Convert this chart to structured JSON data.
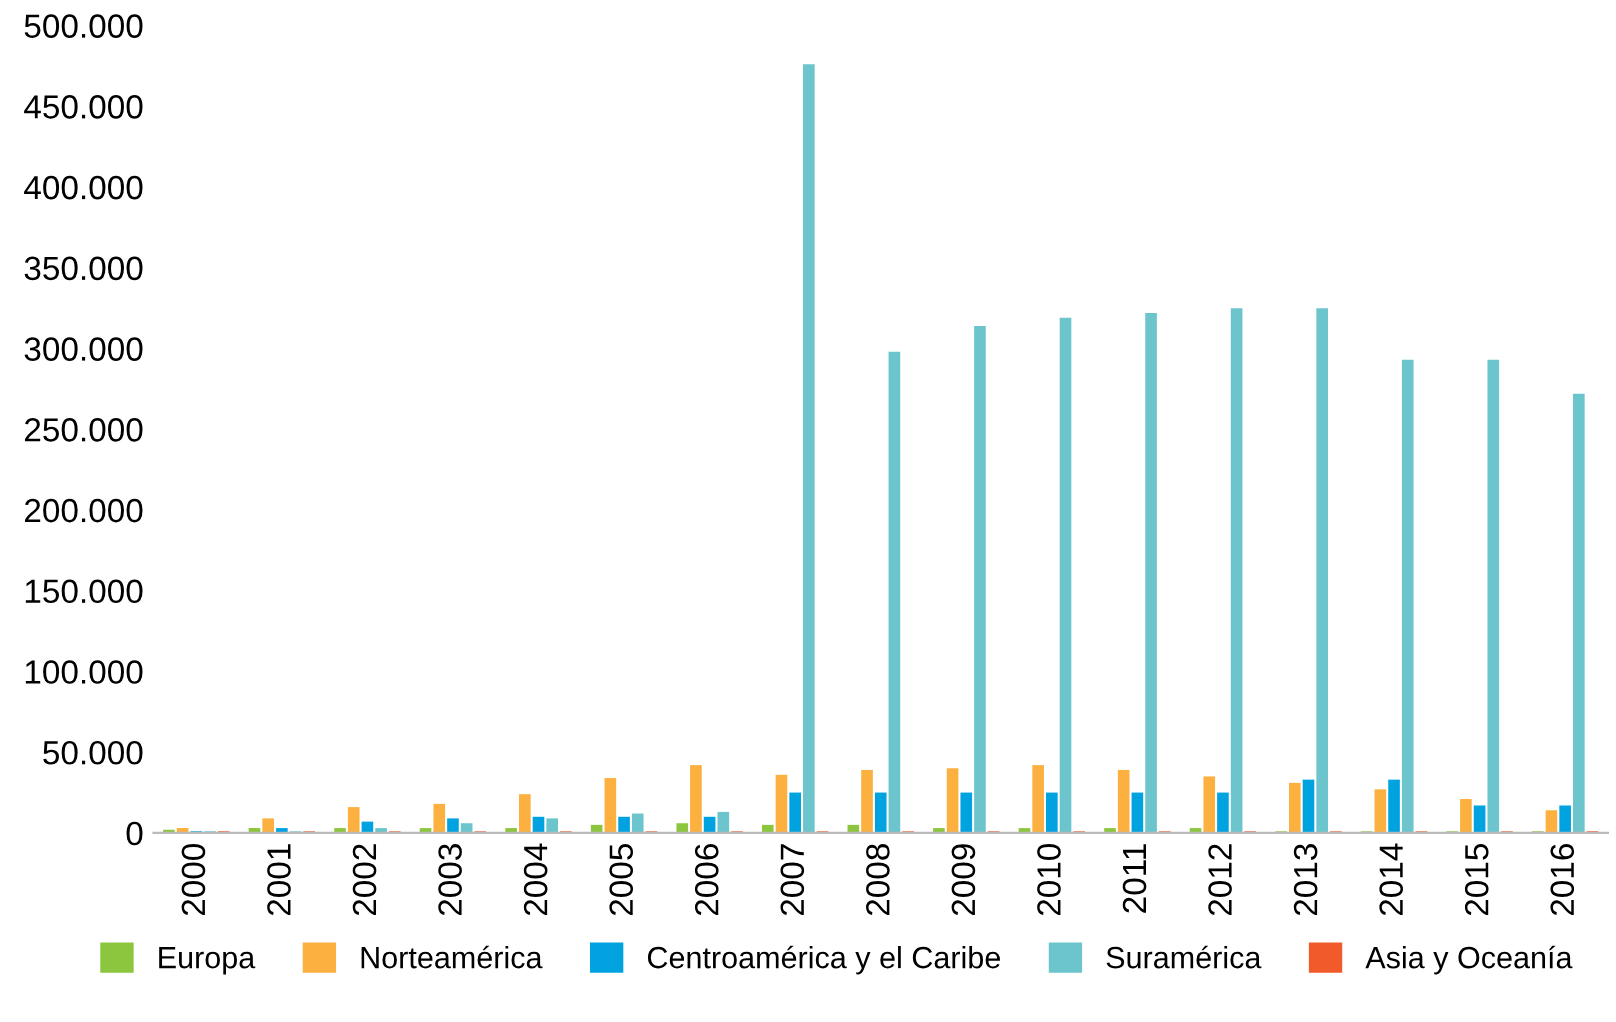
{
  "chart_data": {
    "type": "bar",
    "categories": [
      "2000",
      "2001",
      "2002",
      "2003",
      "2004",
      "2005",
      "2006",
      "2007",
      "2008",
      "2009",
      "2010",
      "2011",
      "2012",
      "2013",
      "2014",
      "2015",
      "2016"
    ],
    "series": [
      {
        "name": "Europa",
        "color": "#8cc63f",
        "values": [
          2000,
          3000,
          3000,
          3000,
          3000,
          5000,
          6000,
          5000,
          5000,
          3000,
          3000,
          3000,
          3000,
          1000,
          1000,
          1000,
          1000
        ]
      },
      {
        "name": "Norteamérica",
        "color": "#fbb040",
        "values": [
          3000,
          9000,
          16000,
          18000,
          24000,
          34000,
          42000,
          36000,
          39000,
          40000,
          42000,
          39000,
          35000,
          31000,
          27000,
          21000,
          14000
        ]
      },
      {
        "name": "Centroamérica y el Caribe",
        "color": "#00a3e0",
        "values": [
          1000,
          3000,
          7000,
          9000,
          10000,
          10000,
          10000,
          25000,
          25000,
          25000,
          25000,
          25000,
          25000,
          33000,
          33000,
          17000,
          17000
        ]
      },
      {
        "name": "Suramérica",
        "color": "#6cc5cc",
        "values": [
          1000,
          1000,
          3000,
          6000,
          9000,
          12000,
          13000,
          476000,
          298000,
          314000,
          319000,
          322000,
          325000,
          325000,
          293000,
          293000,
          272000
        ]
      },
      {
        "name": "Asia y Oceanía",
        "color": "#f15a29",
        "values": [
          1000,
          1000,
          1000,
          1000,
          1000,
          1000,
          1000,
          1000,
          1000,
          1000,
          1000,
          1000,
          1000,
          1000,
          1000,
          1000,
          1000
        ]
      }
    ],
    "ylim": [
      0,
      500000
    ],
    "yticks": [
      {
        "value": 0,
        "label": "0"
      },
      {
        "value": 50000,
        "label": "50.000"
      },
      {
        "value": 100000,
        "label": "100.000"
      },
      {
        "value": 150000,
        "label": "150.000"
      },
      {
        "value": 200000,
        "label": "200.000"
      },
      {
        "value": 250000,
        "label": "250.000"
      },
      {
        "value": 300000,
        "label": "300.000"
      },
      {
        "value": 350000,
        "label": "350.000"
      },
      {
        "value": 400000,
        "label": "400.000"
      },
      {
        "value": 450000,
        "label": "450.000"
      },
      {
        "value": 500000,
        "label": "500.000"
      }
    ],
    "grid": false,
    "legend": "bottom"
  }
}
